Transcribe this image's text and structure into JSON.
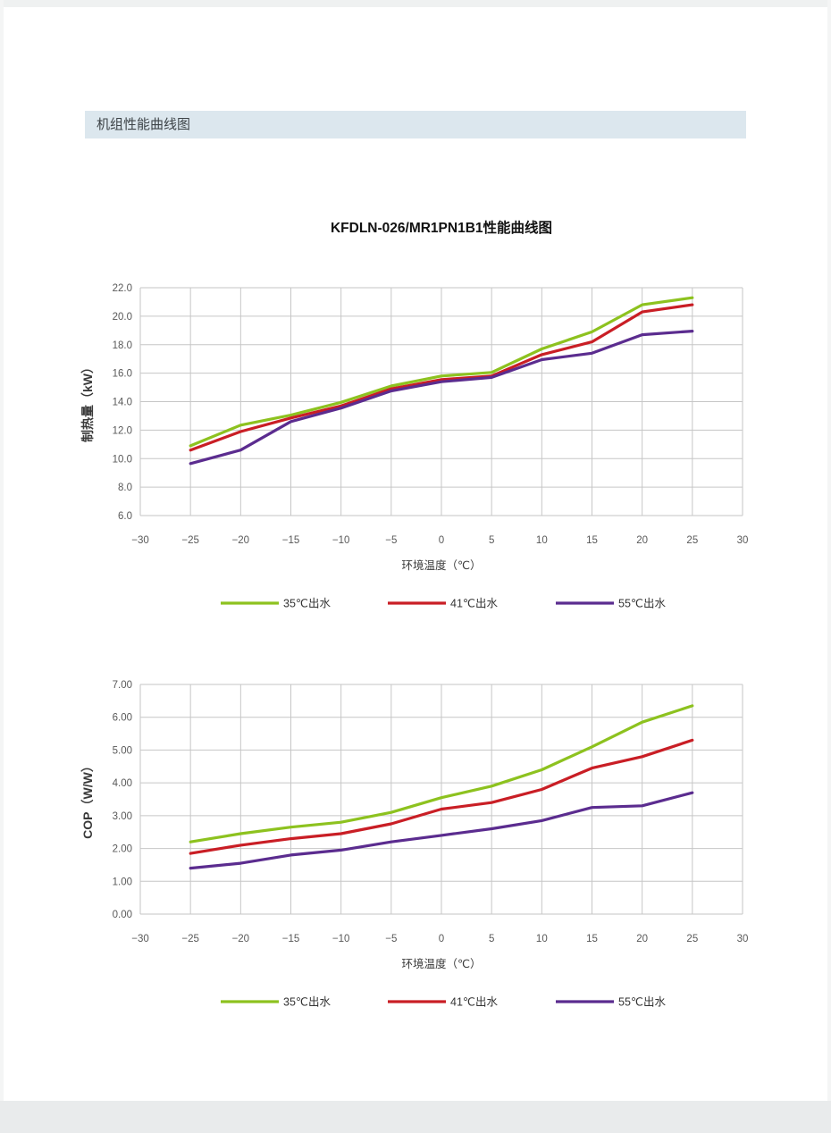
{
  "page": {
    "section_header": "机组性能曲线图",
    "chart_title": "KFDLN-026/MR1PN1B1性能曲线图"
  },
  "colors": {
    "header_bg": "#dce7ee",
    "grid": "#c6c6c6",
    "tick_text": "#595959",
    "axis_label_text": "#3a3a3a",
    "series_35c": "#8dc21f",
    "series_41c": "#c91e25",
    "series_55c": "#5b2c8f"
  },
  "chart_data": [
    {
      "type": "line",
      "name": "heating-capacity",
      "xlabel": "环境温度（℃）",
      "ylabel": "制热量（kW）",
      "xlim": [
        -30,
        30
      ],
      "xtick_step": 5,
      "ylim": [
        6,
        22
      ],
      "ytick_step": 2,
      "ytick_decimals": 1,
      "grid": true,
      "legend_position": "bottom",
      "x": [
        -25,
        -20,
        -15,
        -10,
        -5,
        0,
        5,
        10,
        15,
        20,
        25
      ],
      "series": [
        {
          "name": "35℃出水",
          "color": "#8dc21f",
          "values": [
            10.9,
            12.35,
            13.05,
            13.95,
            15.1,
            15.8,
            16.05,
            17.7,
            18.9,
            20.8,
            21.3
          ]
        },
        {
          "name": "41℃出水",
          "color": "#c91e25",
          "values": [
            10.6,
            11.9,
            12.85,
            13.7,
            14.9,
            15.55,
            15.8,
            17.3,
            18.2,
            20.3,
            20.8
          ]
        },
        {
          "name": "55℃出水",
          "color": "#5b2c8f",
          "values": [
            9.65,
            10.6,
            12.6,
            13.55,
            14.75,
            15.4,
            15.7,
            16.95,
            17.4,
            18.7,
            18.95
          ]
        }
      ]
    },
    {
      "type": "line",
      "name": "cop",
      "xlabel": "环境温度（℃）",
      "ylabel": "COP（W/W）",
      "xlim": [
        -30,
        30
      ],
      "xtick_step": 5,
      "ylim": [
        0,
        7
      ],
      "ytick_step": 1,
      "ytick_decimals": 2,
      "grid": true,
      "legend_position": "bottom",
      "x": [
        -25,
        -20,
        -15,
        -10,
        -5,
        0,
        5,
        10,
        15,
        20,
        25
      ],
      "series": [
        {
          "name": "35℃出水",
          "color": "#8dc21f",
          "values": [
            2.2,
            2.45,
            2.65,
            2.8,
            3.1,
            3.55,
            3.9,
            4.4,
            5.1,
            5.85,
            6.35
          ]
        },
        {
          "name": "41℃出水",
          "color": "#c91e25",
          "values": [
            1.85,
            2.1,
            2.3,
            2.45,
            2.75,
            3.2,
            3.4,
            3.8,
            4.45,
            4.8,
            5.3
          ]
        },
        {
          "name": "55℃出水",
          "color": "#5b2c8f",
          "values": [
            1.4,
            1.55,
            1.8,
            1.95,
            2.2,
            2.4,
            2.6,
            2.85,
            3.25,
            3.3,
            3.7
          ]
        }
      ]
    }
  ]
}
